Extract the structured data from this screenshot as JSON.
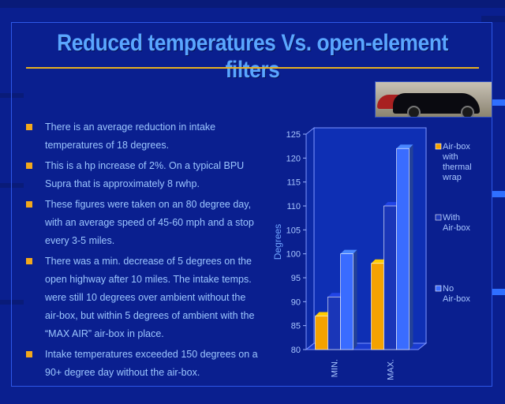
{
  "slide": {
    "title": "Reduced temperatures Vs. open-element filters",
    "photo_label": "car-photo",
    "colors": {
      "background": "#0a1f8f",
      "title": "#5aa6ff",
      "rule": "#e8b020",
      "bullet": "#f2a81c",
      "text": "#9cc6ff"
    },
    "bullets": [
      "There is an average reduction in intake temperatures of 18 degrees.",
      "This is a hp increase of 2%. On a typical BPU Supra that is approximately 8 rwhp.",
      "These figures were taken on an 80 degree day, with an average speed of 45-60 mph and a stop every 3-5 miles.",
      "There was a min. decrease of 5 degrees on the open highway after 10 miles. The intake temps. were still 10 degrees over ambient without the air-box, but within 5 degrees of ambient with the “MAX AIR” air-box in place.",
      "Intake temperatures exceeded 150 degrees on a 90+ degree day without the air-box."
    ]
  },
  "chart_data": {
    "type": "bar",
    "categories": [
      "MIN.",
      "MAX."
    ],
    "series": [
      {
        "name": "Air-box with thermal wrap",
        "values": [
          87,
          98
        ],
        "color": "#f5a200"
      },
      {
        "name": "With Air-box",
        "values": [
          91,
          110
        ],
        "color": "#1a36b8"
      },
      {
        "name": "No Air-box",
        "values": [
          100,
          122
        ],
        "color": "#3a6cff"
      }
    ],
    "ylabel": "Degrees",
    "ylim": [
      80,
      125
    ],
    "yticks": [
      80,
      85,
      90,
      95,
      100,
      105,
      110,
      115,
      120,
      125
    ],
    "grid": false,
    "legend": "right"
  }
}
